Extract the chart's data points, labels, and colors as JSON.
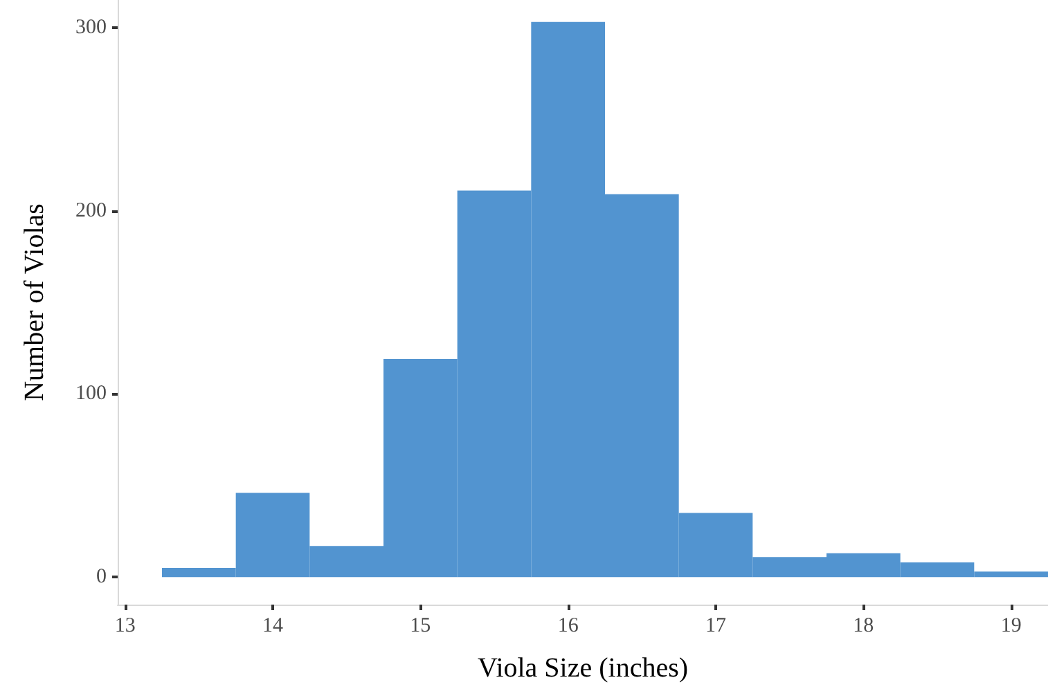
{
  "chart_data": {
    "type": "histogram",
    "xlabel": "Viola Size (inches)",
    "ylabel": "Number of Violas",
    "color": "#5294d0",
    "bins": [
      13.25,
      13.75,
      14.25,
      14.75,
      15.25,
      15.75,
      16.25,
      16.75,
      17.25,
      17.75,
      18.25,
      18.75,
      19.25
    ],
    "values": [
      5,
      46,
      17,
      119,
      211,
      303,
      209,
      35,
      11,
      13,
      8,
      3
    ],
    "xlim": [
      12.95,
      19.25
    ],
    "xticks": [
      13,
      14,
      15,
      16,
      17,
      18,
      19
    ],
    "ylim": [
      -15,
      315
    ],
    "yticks": [
      0,
      100,
      200,
      300
    ],
    "grid": false
  }
}
